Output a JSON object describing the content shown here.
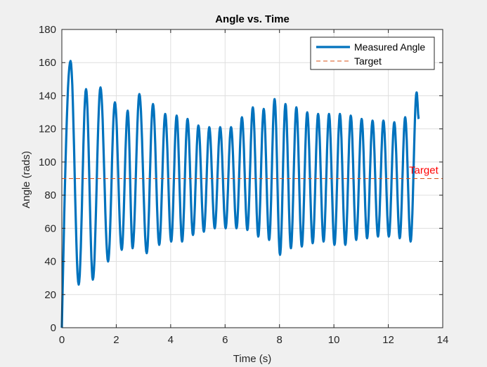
{
  "chart_data": {
    "type": "line",
    "title": "Angle vs. Time",
    "xlabel": "Time (s)",
    "ylabel": "Angle (rads)",
    "xlim": [
      0,
      14
    ],
    "ylim": [
      0,
      180
    ],
    "xticks": [
      0,
      2,
      4,
      6,
      8,
      10,
      12,
      14
    ],
    "yticks": [
      0,
      20,
      40,
      60,
      80,
      100,
      120,
      140,
      160,
      180
    ],
    "grid": true,
    "legend_position": "top-right",
    "series": [
      {
        "name": "Measured Angle",
        "color": "#0072bd",
        "style": "solid",
        "points": [
          [
            0,
            0
          ],
          [
            0.32,
            161
          ],
          [
            0.62,
            26
          ],
          [
            0.89,
            144
          ],
          [
            1.14,
            29
          ],
          [
            1.42,
            145
          ],
          [
            1.7,
            40
          ],
          [
            1.95,
            136
          ],
          [
            2.2,
            47
          ],
          [
            2.42,
            131
          ],
          [
            2.6,
            48
          ],
          [
            2.85,
            141
          ],
          [
            3.12,
            45
          ],
          [
            3.35,
            135
          ],
          [
            3.58,
            50
          ],
          [
            3.8,
            129
          ],
          [
            4.02,
            52
          ],
          [
            4.22,
            128
          ],
          [
            4.42,
            52
          ],
          [
            4.62,
            126
          ],
          [
            4.82,
            56
          ],
          [
            5.02,
            122
          ],
          [
            5.22,
            58
          ],
          [
            5.42,
            121
          ],
          [
            5.62,
            60
          ],
          [
            5.82,
            121
          ],
          [
            6.02,
            60
          ],
          [
            6.22,
            121
          ],
          [
            6.42,
            60
          ],
          [
            6.62,
            127
          ],
          [
            6.82,
            59
          ],
          [
            7.02,
            133
          ],
          [
            7.22,
            55
          ],
          [
            7.42,
            132
          ],
          [
            7.62,
            53
          ],
          [
            7.82,
            138
          ],
          [
            8.02,
            44
          ],
          [
            8.22,
            135
          ],
          [
            8.42,
            48
          ],
          [
            8.62,
            133
          ],
          [
            8.82,
            49
          ],
          [
            9.02,
            130
          ],
          [
            9.22,
            51
          ],
          [
            9.42,
            129
          ],
          [
            9.62,
            52
          ],
          [
            9.82,
            129
          ],
          [
            10.02,
            50
          ],
          [
            10.22,
            129
          ],
          [
            10.42,
            50
          ],
          [
            10.62,
            128
          ],
          [
            10.82,
            53
          ],
          [
            11.02,
            126
          ],
          [
            11.22,
            54
          ],
          [
            11.42,
            125
          ],
          [
            11.62,
            55
          ],
          [
            11.82,
            125
          ],
          [
            12.02,
            55
          ],
          [
            12.22,
            124
          ],
          [
            12.42,
            54
          ],
          [
            12.62,
            127
          ],
          [
            12.82,
            52
          ],
          [
            13.04,
            142
          ],
          [
            13.12,
            126
          ]
        ]
      },
      {
        "name": "Target",
        "color": "#d95319",
        "style": "dashed",
        "y": 90
      }
    ],
    "annotations": [
      {
        "text": "Target",
        "x": 13.3,
        "y": 90,
        "color": "#ff0000"
      }
    ]
  }
}
